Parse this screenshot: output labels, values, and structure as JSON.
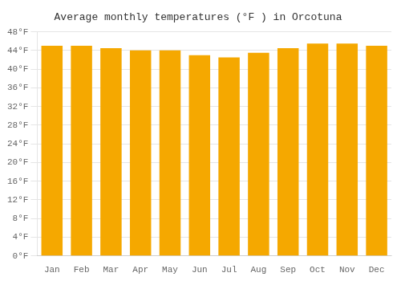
{
  "chart_data": {
    "type": "bar",
    "title": "Average monthly temperatures (°F ) in Orcotuna",
    "categories": [
      "Jan",
      "Feb",
      "Mar",
      "Apr",
      "May",
      "Jun",
      "Jul",
      "Aug",
      "Sep",
      "Oct",
      "Nov",
      "Dec"
    ],
    "values": [
      45.0,
      45.0,
      44.5,
      44.0,
      44.0,
      43.0,
      42.5,
      43.5,
      44.5,
      45.5,
      45.5,
      45.0
    ],
    "color": "#F5A800",
    "ylim": [
      0,
      48
    ],
    "yticks": [
      {
        "value": 0,
        "label": "0°F"
      },
      {
        "value": 4,
        "label": "4°F"
      },
      {
        "value": 8,
        "label": "8°F"
      },
      {
        "value": 12,
        "label": "12°F"
      },
      {
        "value": 16,
        "label": "16°F"
      },
      {
        "value": 20,
        "label": "20°F"
      },
      {
        "value": 24,
        "label": "24°F"
      },
      {
        "value": 28,
        "label": "28°F"
      },
      {
        "value": 32,
        "label": "32°F"
      },
      {
        "value": 36,
        "label": "36°F"
      },
      {
        "value": 40,
        "label": "40°F"
      },
      {
        "value": 44,
        "label": "44°F"
      },
      {
        "value": 48,
        "label": "48°F"
      }
    ],
    "grid": true
  }
}
